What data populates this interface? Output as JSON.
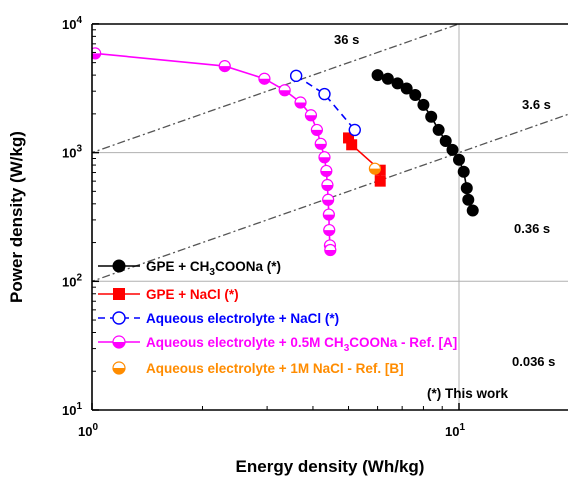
{
  "chart_data": {
    "type": "scatter",
    "xlabel": "Energy density (Wh/kg)",
    "ylabel": "Power density (W/kg)",
    "xscale": "log",
    "yscale": "log",
    "xlim": [
      1,
      20
    ],
    "ylim": [
      10,
      10000
    ],
    "grid": "major gridlines",
    "x_ticks": [
      {
        "value": 1,
        "base": "10",
        "exp": "0"
      },
      {
        "value": 10,
        "base": "10",
        "exp": "1"
      }
    ],
    "y_ticks": [
      {
        "value": 10,
        "base": "10",
        "exp": "1"
      },
      {
        "value": 100,
        "base": "10",
        "exp": "2"
      },
      {
        "value": 1000,
        "base": "10",
        "exp": "3"
      },
      {
        "value": 10000,
        "base": "10",
        "exp": "4"
      }
    ],
    "series": [
      {
        "color": "#000000",
        "marker": "filled-circle",
        "line": "solid",
        "legend_parts": [
          {
            "t": "GPE + CH"
          },
          {
            "t": "3",
            "sub": true
          },
          {
            "t": "COONa (*)"
          }
        ],
        "points": [
          [
            6.0,
            4000
          ],
          [
            6.4,
            3750
          ],
          [
            6.8,
            3450
          ],
          [
            7.2,
            3150
          ],
          [
            7.6,
            2800
          ],
          [
            8.0,
            2350
          ],
          [
            8.4,
            1900
          ],
          [
            8.8,
            1500
          ],
          [
            9.2,
            1230
          ],
          [
            9.6,
            1050
          ],
          [
            10.0,
            880
          ],
          [
            10.3,
            710
          ],
          [
            10.5,
            530
          ],
          [
            10.6,
            430
          ],
          [
            10.9,
            355
          ]
        ]
      },
      {
        "color": "#ff0000",
        "marker": "filled-square",
        "line": "solid",
        "legend_parts": [
          {
            "t": "GPE + NaCl (*)"
          }
        ],
        "points": [
          [
            5.0,
            1300
          ],
          [
            5.1,
            1150
          ],
          [
            6.1,
            730
          ],
          [
            6.1,
            600
          ]
        ]
      },
      {
        "color": "#0000ff",
        "marker": "open-circle",
        "line": "dashed",
        "legend_parts": [
          {
            "t": "Aqueous electrolyte + NaCl (*)"
          }
        ],
        "points": [
          [
            3.6,
            3950
          ],
          [
            4.3,
            2850
          ],
          [
            5.2,
            1500
          ]
        ]
      },
      {
        "color": "#ff00ff",
        "marker": "half-circle",
        "line": "solid",
        "legend_parts": [
          {
            "t": "Aqueous electrolyte + 0.5M CH"
          },
          {
            "t": "3",
            "sub": true
          },
          {
            "t": "COONa - Ref. [A]"
          }
        ],
        "points": [
          [
            1.02,
            5900
          ],
          [
            2.3,
            4700
          ],
          [
            2.95,
            3750
          ],
          [
            3.35,
            3050
          ],
          [
            3.7,
            2450
          ],
          [
            3.95,
            1950
          ],
          [
            4.1,
            1500
          ],
          [
            4.2,
            1170
          ],
          [
            4.3,
            920
          ],
          [
            4.35,
            720
          ],
          [
            4.38,
            560
          ],
          [
            4.4,
            430
          ],
          [
            4.42,
            330
          ],
          [
            4.43,
            250
          ],
          [
            4.45,
            190
          ],
          [
            4.46,
            175
          ]
        ]
      },
      {
        "color": "#ff8c00",
        "marker": "half-circle",
        "line": "none",
        "legend_parts": [
          {
            "t": "Aqueous electrolyte + 1M NaCl - Ref. [B]"
          }
        ],
        "points": [
          [
            5.9,
            750
          ]
        ]
      }
    ],
    "guide_lines": [
      {
        "label": "36 s",
        "seconds": 36
      },
      {
        "label": "3.6 s",
        "seconds": 3.6
      },
      {
        "label": "0.36 s",
        "seconds": 0.36
      },
      {
        "label": "0.036 s",
        "seconds": 0.036
      }
    ],
    "annotation": "(*) This work",
    "legend_placement": "bottom-left"
  }
}
